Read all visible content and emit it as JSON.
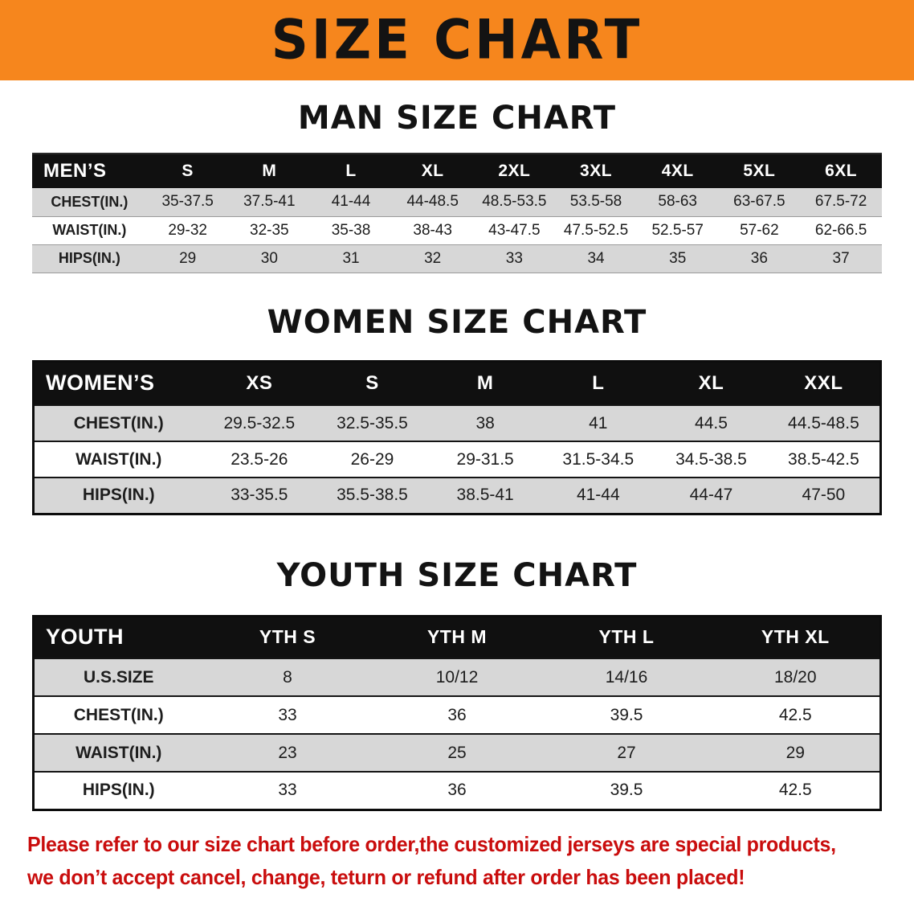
{
  "banner": {
    "title": "SIZE CHART"
  },
  "chart_data": [
    {
      "type": "table",
      "title": "MAN SIZE CHART",
      "columns": [
        "MEN’S",
        "S",
        "M",
        "L",
        "XL",
        "2XL",
        "3XL",
        "4XL",
        "5XL",
        "6XL"
      ],
      "rows": [
        [
          "CHEST(IN.)",
          "35-37.5",
          "37.5-41",
          "41-44",
          "44-48.5",
          "48.5-53.5",
          "53.5-58",
          "58-63",
          "63-67.5",
          "67.5-72"
        ],
        [
          "WAIST(IN.)",
          "29-32",
          "32-35",
          "35-38",
          "38-43",
          "43-47.5",
          "47.5-52.5",
          "52.5-57",
          "57-62",
          "62-66.5"
        ],
        [
          "HIPS(IN.)",
          "29",
          "30",
          "31",
          "32",
          "33",
          "34",
          "35",
          "36",
          "37"
        ]
      ]
    },
    {
      "type": "table",
      "title": "WOMEN SIZE CHART",
      "columns": [
        "WOMEN’S",
        "XS",
        "S",
        "M",
        "L",
        "XL",
        "XXL"
      ],
      "rows": [
        [
          "CHEST(IN.)",
          "29.5-32.5",
          "32.5-35.5",
          "38",
          "41",
          "44.5",
          "44.5-48.5"
        ],
        [
          "WAIST(IN.)",
          "23.5-26",
          "26-29",
          "29-31.5",
          "31.5-34.5",
          "34.5-38.5",
          "38.5-42.5"
        ],
        [
          "HIPS(IN.)",
          "33-35.5",
          "35.5-38.5",
          "38.5-41",
          "41-44",
          "44-47",
          "47-50"
        ]
      ]
    },
    {
      "type": "table",
      "title": "YOUTH SIZE CHART",
      "columns": [
        "YOUTH",
        "YTH S",
        "YTH M",
        "YTH L",
        "YTH XL"
      ],
      "rows": [
        [
          "U.S.SIZE",
          "8",
          "10/12",
          "14/16",
          "18/20"
        ],
        [
          "CHEST(IN.)",
          "33",
          "36",
          "39.5",
          "42.5"
        ],
        [
          "WAIST(IN.)",
          "23",
          "25",
          "27",
          "29"
        ],
        [
          "HIPS(IN.)",
          "33",
          "36",
          "39.5",
          "42.5"
        ]
      ]
    }
  ],
  "disclaimer": {
    "line1": "Please refer to our size chart before order,the customized jerseys are special products,",
    "line2": "we don’t accept cancel, change, teturn or refund after order has been placed!"
  },
  "colors": {
    "banner_orange": "#f6861d",
    "header_black": "#101010",
    "row_gray": "#d7d7d7",
    "disclaimer_red": "#c90d0d"
  }
}
